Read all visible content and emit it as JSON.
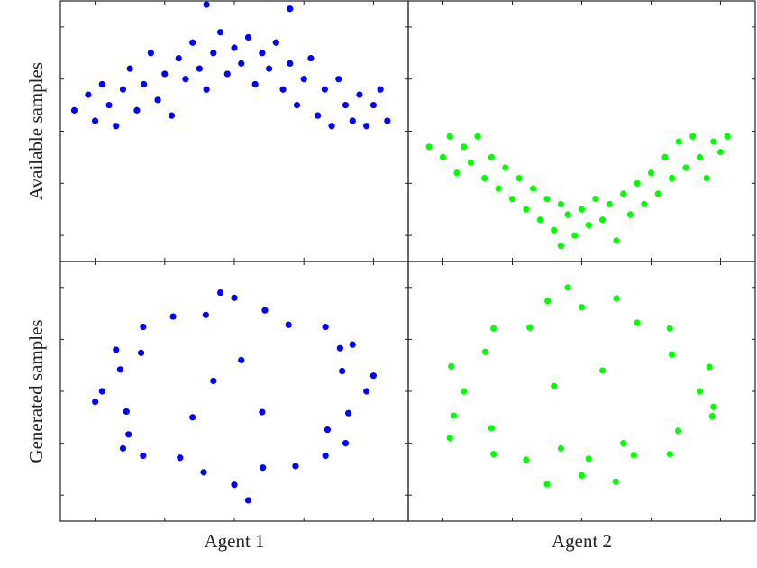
{
  "chart_data": [
    {
      "type": "scatter",
      "ylabel": "Available samples",
      "color": "#0000ff",
      "xlim": [
        -2.5,
        2.5
      ],
      "ylim": [
        -2.5,
        2.5
      ],
      "xticks": [
        -2,
        -1,
        0,
        1,
        2
      ],
      "yticks": [
        -2,
        -1,
        0,
        1,
        2
      ],
      "x": [
        -2.3,
        -2.1,
        -2.0,
        -1.9,
        -1.8,
        -1.7,
        -1.6,
        -1.5,
        -1.4,
        -1.3,
        -1.2,
        -1.1,
        -1.0,
        -0.9,
        -0.8,
        -0.7,
        -0.6,
        -0.5,
        -0.4,
        -0.3,
        -0.2,
        -0.1,
        0.0,
        0.1,
        0.2,
        0.3,
        0.4,
        0.5,
        0.6,
        0.7,
        0.8,
        0.9,
        1.0,
        1.1,
        1.2,
        1.3,
        1.4,
        1.5,
        1.6,
        1.7,
        1.8,
        1.9,
        2.0,
        2.1,
        2.2,
        -0.4,
        0.8
      ],
      "y": [
        0.4,
        0.7,
        0.2,
        0.9,
        0.5,
        0.1,
        0.8,
        1.2,
        0.4,
        0.9,
        1.5,
        0.6,
        1.1,
        0.3,
        1.4,
        1.0,
        1.7,
        1.2,
        0.8,
        1.5,
        1.9,
        1.1,
        1.6,
        1.3,
        1.8,
        0.9,
        1.5,
        1.2,
        1.7,
        0.8,
        1.3,
        0.5,
        1.0,
        1.4,
        0.3,
        0.8,
        0.1,
        1.0,
        0.5,
        0.2,
        0.7,
        0.1,
        0.5,
        0.8,
        0.2,
        2.43,
        2.35
      ]
    },
    {
      "type": "scatter",
      "color": "#00ff00",
      "xlim": [
        -2.5,
        2.5
      ],
      "ylim": [
        -2.5,
        2.5
      ],
      "xticks": [
        -2,
        -1,
        0,
        1,
        2
      ],
      "yticks": [
        -2,
        -1,
        0,
        1,
        2
      ],
      "x": [
        -2.2,
        -2.0,
        -1.9,
        -1.8,
        -1.7,
        -1.6,
        -1.5,
        -1.4,
        -1.3,
        -1.2,
        -1.1,
        -1.0,
        -0.9,
        -0.8,
        -0.7,
        -0.6,
        -0.5,
        -0.4,
        -0.3,
        -0.2,
        -0.1,
        0.0,
        0.1,
        0.2,
        0.3,
        0.4,
        0.5,
        0.6,
        0.7,
        0.8,
        0.9,
        1.0,
        1.1,
        1.2,
        1.3,
        1.4,
        1.5,
        1.6,
        1.7,
        1.8,
        1.9,
        2.0,
        2.1,
        -0.3
      ],
      "y": [
        -0.3,
        -0.5,
        -0.1,
        -0.8,
        -0.3,
        -0.6,
        -0.1,
        -0.9,
        -0.5,
        -1.1,
        -0.7,
        -1.3,
        -0.9,
        -1.5,
        -1.1,
        -1.7,
        -1.3,
        -1.9,
        -1.4,
        -1.6,
        -2.0,
        -1.5,
        -1.8,
        -1.3,
        -1.7,
        -1.4,
        -2.1,
        -1.2,
        -1.6,
        -1.0,
        -1.4,
        -0.8,
        -1.2,
        -0.5,
        -0.9,
        -0.2,
        -0.7,
        -0.1,
        -0.5,
        -0.9,
        -0.2,
        -0.4,
        -0.1,
        -2.2
      ]
    },
    {
      "type": "scatter",
      "ylabel": "Generated samples",
      "xlabel": "Agent 1",
      "color": "#0000ff",
      "xlim": [
        -2.5,
        2.5
      ],
      "ylim": [
        -2.5,
        2.5
      ],
      "xticks": [
        -2,
        -1,
        0,
        1,
        2
      ],
      "yticks": [
        -2,
        -1,
        0,
        1,
        2
      ],
      "x": [
        1.9,
        1.55,
        1.52,
        1.31,
        0.78,
        0.44,
        0,
        -0.41,
        -0.88,
        -1.31,
        -1.34,
        -1.64,
        -1.9,
        -1.55,
        -1.52,
        -1.31,
        -0.78,
        -0.44,
        0,
        0.41,
        0.88,
        1.31,
        1.34,
        1.64,
        2.0,
        -2.0,
        0.2,
        -0.2,
        1.7,
        -1.7,
        1.6,
        -1.6,
        -0.3,
        0.4,
        0.1,
        -0.6
      ],
      "y": [
        0,
        0.39,
        0.83,
        1.24,
        1.28,
        1.56,
        1.8,
        1.47,
        1.44,
        1.24,
        0.74,
        0.42,
        0,
        -0.39,
        -0.83,
        -1.24,
        -1.28,
        -1.56,
        -1.8,
        -1.47,
        -1.44,
        -1.24,
        -0.74,
        -0.42,
        0.3,
        -0.2,
        -2.1,
        1.9,
        0.9,
        0.8,
        -1.0,
        -1.1,
        0.2,
        -0.4,
        0.6,
        -0.5
      ]
    },
    {
      "type": "scatter",
      "xlabel": "Agent 2",
      "color": "#00ff00",
      "xlim": [
        -2.5,
        2.5
      ],
      "ylim": [
        -2.5,
        2.5
      ],
      "xticks": [
        -2,
        -1,
        0,
        1,
        2
      ],
      "yticks": [
        -2,
        -1,
        0,
        1,
        2
      ],
      "x": [
        1.7,
        1.84,
        1.3,
        1.27,
        0.8,
        0.5,
        0,
        -0.49,
        -0.75,
        -1.27,
        -1.39,
        -1.88,
        -1.7,
        -1.84,
        -1.3,
        -1.27,
        -0.8,
        -0.5,
        0,
        0.49,
        0.75,
        1.27,
        1.39,
        1.88,
        0.1,
        -0.3,
        0.6,
        -1.9,
        -0.2,
        1.9,
        0.3,
        -0.4
      ],
      "y": [
        0,
        0.47,
        0.71,
        1.21,
        1.32,
        1.79,
        1.62,
        1.74,
        1.23,
        1.21,
        0.76,
        0.48,
        0,
        -0.47,
        -0.71,
        -1.21,
        -1.32,
        -1.79,
        -1.62,
        -1.74,
        -1.23,
        -1.21,
        -0.76,
        -0.48,
        -1.3,
        -1.1,
        -1.0,
        -0.9,
        2.0,
        -0.3,
        0.4,
        0.1
      ]
    }
  ]
}
